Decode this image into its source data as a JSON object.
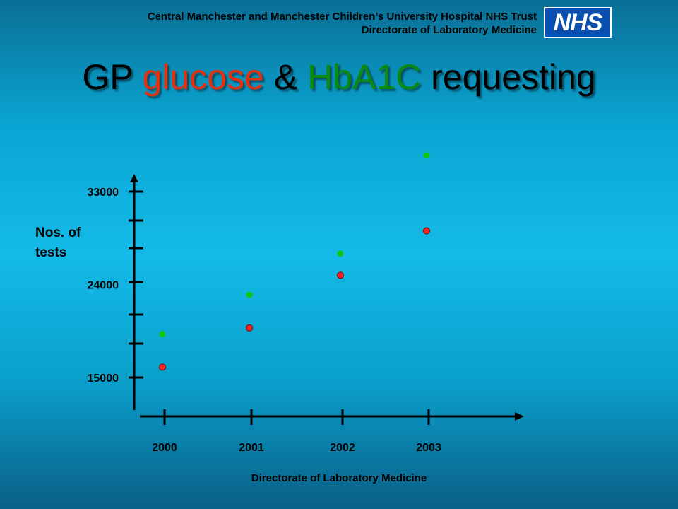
{
  "header": {
    "line1": "Central Manchester and Manchester Children’s University Hospital NHS Trust",
    "line2": "Directorate of Laboratory Medicine",
    "logo_text": "NHS"
  },
  "title": {
    "part1": "GP ",
    "part2": "glucose",
    "part3": " & ",
    "part4": "HbA1C",
    "part5": " requesting"
  },
  "footer": {
    "text": "Directorate of Laboratory Medicine"
  },
  "colors": {
    "glucose": "#e53010",
    "hba1c": "#0a8a10",
    "hba1c_point": "#11c511",
    "glucose_point": "#ff2020",
    "axis": "#000000",
    "background_mid": "#14bbe8"
  },
  "chart_data": {
    "type": "scatter",
    "x": [
      2000,
      2001,
      2002,
      2003
    ],
    "x_tick_labels": [
      "2000",
      "2001",
      "2002",
      "2003"
    ],
    "y_tick_labels": [
      "33000",
      "24000",
      "15000"
    ],
    "y_tick_values": [
      33000,
      24000,
      15000
    ],
    "ylabel": "Nos. of tests",
    "xlabel": "",
    "ylim": [
      12000,
      35000
    ],
    "grid": false,
    "legend": "none",
    "series": [
      {
        "key": "hba1c",
        "x": [
          2000,
          2001,
          2002,
          2003
        ],
        "values": [
          19200,
          23000,
          27000,
          36500
        ]
      },
      {
        "key": "glucose",
        "x": [
          2000,
          2001,
          2002,
          2003
        ],
        "values": [
          16000,
          19800,
          24900,
          29200
        ]
      }
    ]
  }
}
